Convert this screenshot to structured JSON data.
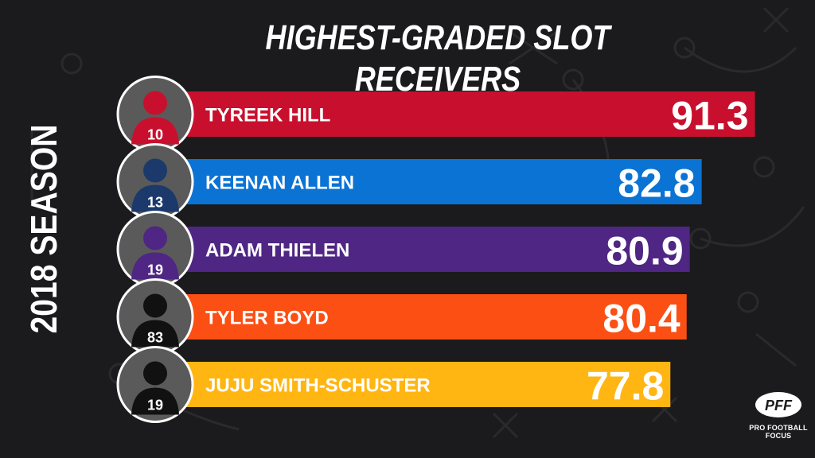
{
  "title": "HIGHEST-GRADED SLOT RECEIVERS",
  "season_label": "2018 SEASON",
  "logo": {
    "mark": "PFF",
    "text": "PRO FOOTBALL FOCUS"
  },
  "colors": {
    "background": "#1b1b1d",
    "hill": "#c8102e",
    "allen": "#0a73d4",
    "thielen": "#4f2683",
    "boyd": "#fb4f14",
    "smith_schuster": "#ffb612"
  },
  "players": [
    {
      "name": "TYREEK HILL",
      "jersey": "10",
      "helmet": "#c8102e"
    },
    {
      "name": "KEENAN ALLEN",
      "jersey": "13",
      "helmet": "#1b3a6b"
    },
    {
      "name": "ADAM THIELEN",
      "jersey": "19",
      "helmet": "#4f2683"
    },
    {
      "name": "TYLER BOYD",
      "jersey": "83",
      "helmet": "#111111"
    },
    {
      "name": "JUJU SMITH-SCHUSTER",
      "jersey": "19",
      "helmet": "#111111"
    }
  ],
  "chart_data": {
    "type": "bar",
    "orientation": "horizontal",
    "title": "HIGHEST-GRADED SLOT RECEIVERS",
    "subtitle": "2018 SEASON",
    "categories": [
      "TYREEK HILL",
      "KEENAN ALLEN",
      "ADAM THIELEN",
      "TYLER BOYD",
      "JUJU SMITH-SCHUSTER"
    ],
    "values": [
      91.3,
      82.8,
      80.9,
      80.4,
      77.8
    ],
    "value_labels": [
      "91.3",
      "82.8",
      "80.9",
      "80.4",
      "77.8"
    ],
    "bar_colors": [
      "#c8102e",
      "#0a73d4",
      "#4f2683",
      "#fb4f14",
      "#ffb612"
    ],
    "grid": false,
    "legend": "none"
  }
}
